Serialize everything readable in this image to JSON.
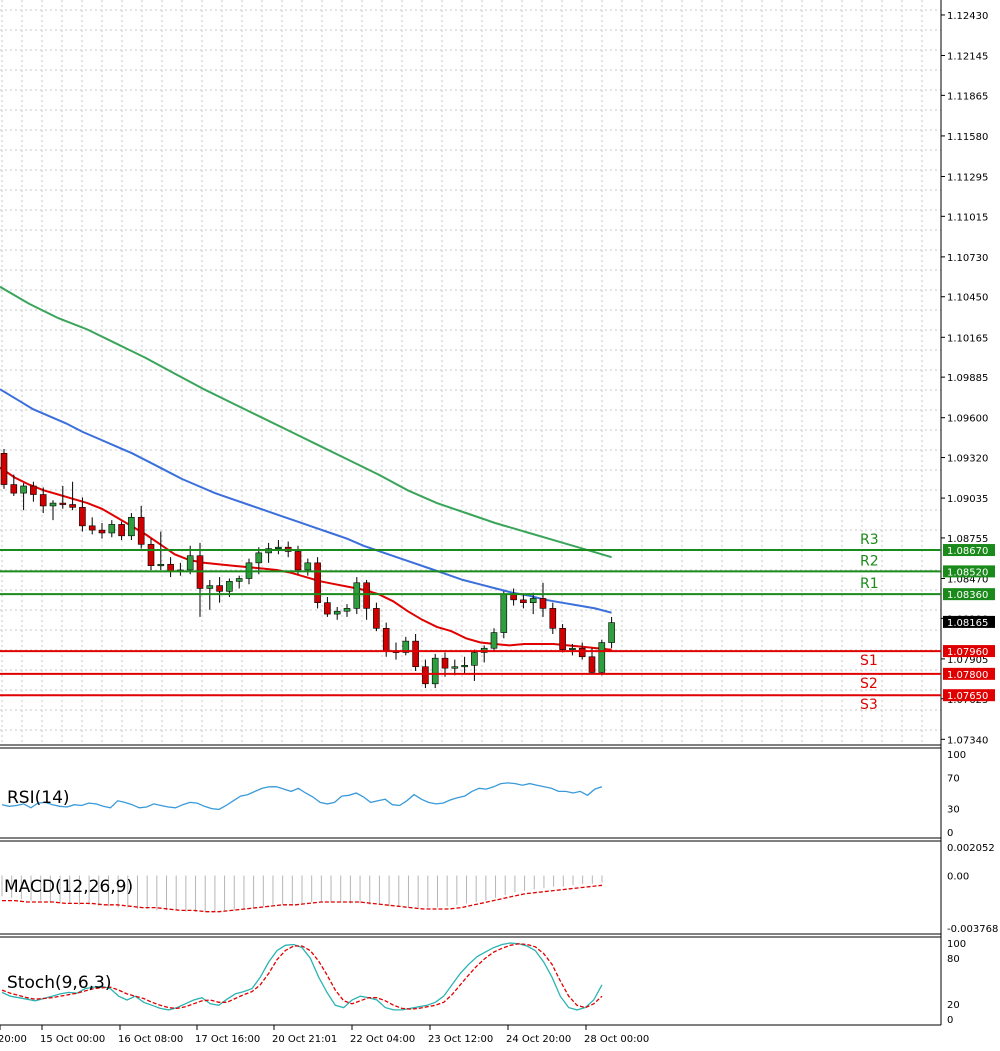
{
  "chart_data": {
    "type": "candlestick",
    "colors": {
      "bull": "#2e9e3e",
      "bear": "#d10000",
      "ma_fast": "#e00000",
      "ma_mid": "#3b6fdc",
      "ma_slow": "#3aa55a",
      "support": "#e00000",
      "resistance": "#1a8a1a",
      "grid": "#c9c9c9",
      "current_tag": "#000000"
    },
    "price_axis": {
      "ticks": [
        "1.12430",
        "1.12145",
        "1.11865",
        "1.11580",
        "1.11295",
        "1.11015",
        "1.10730",
        "1.10450",
        "1.10165",
        "1.09885",
        "1.09600",
        "1.09320",
        "1.09035",
        "1.08755",
        "1.08470",
        "1.08190",
        "1.07905",
        "1.07625",
        "1.07340"
      ],
      "ylim": [
        1.073,
        1.125
      ]
    },
    "time_axis": [
      "20:00",
      "15 Oct 00:00",
      "16 Oct 08:00",
      "17 Oct 16:00",
      "20 Oct 21:01",
      "22 Oct 04:00",
      "23 Oct 12:00",
      "24 Oct 20:00",
      "28 Oct 00:00"
    ],
    "current_price": {
      "value": 1.08165,
      "label": "1.08165"
    },
    "levels": [
      {
        "name": "R3",
        "value": 1.0867,
        "label": "1.08670",
        "kind": "resistance"
      },
      {
        "name": "R2",
        "value": 1.0852,
        "label": "1.08520",
        "kind": "resistance"
      },
      {
        "name": "R1",
        "value": 1.0836,
        "label": "1.08360",
        "kind": "resistance"
      },
      {
        "name": "S1",
        "value": 1.0796,
        "label": "1.07960",
        "kind": "support"
      },
      {
        "name": "S2",
        "value": 1.078,
        "label": "1.07800",
        "kind": "support"
      },
      {
        "name": "S3",
        "value": 1.0765,
        "label": "1.07650",
        "kind": "support"
      }
    ],
    "candles": [
      [
        1.0935,
        1.0938,
        1.091,
        1.0913
      ],
      [
        1.0913,
        1.092,
        1.0905,
        1.0907
      ],
      [
        1.0907,
        1.0914,
        1.0895,
        1.0912
      ],
      [
        1.0912,
        1.0915,
        1.0901,
        1.0906
      ],
      [
        1.0906,
        1.0911,
        1.0893,
        1.0898
      ],
      [
        1.0898,
        1.0902,
        1.0888,
        1.09
      ],
      [
        1.09,
        1.0912,
        1.0896,
        1.0899
      ],
      [
        1.0899,
        1.0915,
        1.0895,
        1.0897
      ],
      [
        1.0897,
        1.0904,
        1.088,
        1.0884
      ],
      [
        1.0884,
        1.089,
        1.0878,
        1.0881
      ],
      [
        1.0881,
        1.0886,
        1.0875,
        1.0879
      ],
      [
        1.0879,
        1.0888,
        1.0876,
        1.0885
      ],
      [
        1.0885,
        1.0887,
        1.0874,
        1.0877
      ],
      [
        1.0877,
        1.0893,
        1.0874,
        1.089
      ],
      [
        1.089,
        1.0898,
        1.0868,
        1.0871
      ],
      [
        1.0871,
        1.0875,
        1.0853,
        1.0856
      ],
      [
        1.0856,
        1.088,
        1.0853,
        1.0857
      ],
      [
        1.0857,
        1.0862,
        1.0848,
        1.0852
      ],
      [
        1.0852,
        1.0858,
        1.0849,
        1.0853
      ],
      [
        1.0853,
        1.087,
        1.085,
        1.0863
      ],
      [
        1.0863,
        1.0872,
        1.082,
        1.084
      ],
      [
        1.084,
        1.0846,
        1.0825,
        1.0842
      ],
      [
        1.0842,
        1.0848,
        1.083,
        1.0838
      ],
      [
        1.0838,
        1.0847,
        1.0834,
        1.0845
      ],
      [
        1.0845,
        1.0849,
        1.084,
        1.0847
      ],
      [
        1.0847,
        1.0861,
        1.0843,
        1.0858
      ],
      [
        1.0858,
        1.0869,
        1.085,
        1.0865
      ],
      [
        1.0865,
        1.0872,
        1.0858,
        1.0868
      ],
      [
        1.0868,
        1.0874,
        1.0864,
        1.0869
      ],
      [
        1.0869,
        1.0873,
        1.0862,
        1.0866
      ],
      [
        1.0866,
        1.087,
        1.085,
        1.0853
      ],
      [
        1.0853,
        1.0861,
        1.0849,
        1.0858
      ],
      [
        1.0858,
        1.0862,
        1.0826,
        1.083
      ],
      [
        1.083,
        1.0834,
        1.082,
        1.0822
      ],
      [
        1.0822,
        1.0827,
        1.0818,
        1.0824
      ],
      [
        1.0824,
        1.0829,
        1.082,
        1.0826
      ],
      [
        1.0826,
        1.0848,
        1.0822,
        1.0844
      ],
      [
        1.0844,
        1.0846,
        1.0818,
        1.0826
      ],
      [
        1.0826,
        1.083,
        1.081,
        1.0812
      ],
      [
        1.0812,
        1.0816,
        1.0792,
        1.0796
      ],
      [
        1.0796,
        1.0802,
        1.079,
        1.0795
      ],
      [
        1.0795,
        1.0806,
        1.0793,
        1.0803
      ],
      [
        1.0803,
        1.0808,
        1.0782,
        1.0785
      ],
      [
        1.0785,
        1.079,
        1.077,
        1.0773
      ],
      [
        1.0773,
        1.0794,
        1.077,
        1.0791
      ],
      [
        1.0791,
        1.0795,
        1.0778,
        1.0784
      ],
      [
        1.0784,
        1.079,
        1.0779,
        1.0785
      ],
      [
        1.0785,
        1.0792,
        1.078,
        1.0786
      ],
      [
        1.0786,
        1.0797,
        1.0775,
        1.0795
      ],
      [
        1.0795,
        1.08,
        1.0788,
        1.0798
      ],
      [
        1.0798,
        1.0812,
        1.0796,
        1.0809
      ],
      [
        1.0809,
        1.0838,
        1.0805,
        1.0836
      ],
      [
        1.0836,
        1.084,
        1.0828,
        1.0832
      ],
      [
        1.0832,
        1.0836,
        1.0826,
        1.083
      ],
      [
        1.083,
        1.0837,
        1.0822,
        1.0833
      ],
      [
        1.0833,
        1.0844,
        1.082,
        1.0826
      ],
      [
        1.0826,
        1.083,
        1.0808,
        1.0812
      ],
      [
        1.0812,
        1.0815,
        1.0795,
        1.0797
      ],
      [
        1.0797,
        1.0801,
        1.0793,
        1.0798
      ],
      [
        1.0798,
        1.0802,
        1.079,
        1.0792
      ],
      [
        1.0792,
        1.0798,
        1.078,
        1.0781
      ],
      [
        1.0781,
        1.0804,
        1.0779,
        1.0802
      ],
      [
        1.0802,
        1.082,
        1.0798,
        1.0816
      ]
    ],
    "ma_fast": [
      1.0925,
      1.0918,
      1.0913,
      1.0909,
      1.0906,
      1.0903,
      1.09,
      1.0896,
      1.089,
      1.0884,
      1.0878,
      1.0871,
      1.0864,
      1.086,
      1.0858,
      1.0857,
      1.0856,
      1.0855,
      1.0854,
      1.0853,
      1.0851,
      1.0848,
      1.0845,
      1.0843,
      1.0841,
      1.0839,
      1.0836,
      1.0831,
      1.0824,
      1.0818,
      1.0813,
      1.081,
      1.0805,
      1.0802,
      1.0801,
      1.08,
      1.0801,
      1.0801,
      1.0801,
      1.08,
      1.0799,
      1.0798,
      1.0797
    ],
    "ma_mid": [
      1.098,
      1.0973,
      1.0966,
      1.0961,
      1.0956,
      1.095,
      1.0945,
      1.094,
      1.0935,
      1.0929,
      1.0923,
      1.0917,
      1.0912,
      1.0907,
      1.0903,
      1.0899,
      1.0895,
      1.0891,
      1.0887,
      1.0883,
      1.0879,
      1.0875,
      1.087,
      1.0866,
      1.0862,
      1.0858,
      1.0854,
      1.085,
      1.0846,
      1.0843,
      1.084,
      1.0837,
      1.0835,
      1.0832,
      1.083,
      1.0828,
      1.0826,
      1.0823
    ],
    "ma_slow": [
      1.1052,
      1.104,
      1.103,
      1.1022,
      1.1012,
      1.1002,
      1.0991,
      1.098,
      1.097,
      1.096,
      1.095,
      1.094,
      1.093,
      1.092,
      1.0909,
      1.09,
      1.0893,
      1.0886,
      1.088,
      1.0874,
      1.0868,
      1.0862
    ],
    "rsi": {
      "label": "RSI(14)",
      "ticks": [
        "100",
        "70",
        "30",
        "0"
      ],
      "ylim": [
        0,
        100
      ],
      "values": [
        35,
        33,
        34,
        36,
        31,
        37,
        38,
        35,
        33,
        32,
        35,
        34,
        37,
        36,
        33,
        31,
        40,
        38,
        35,
        31,
        32,
        36,
        34,
        32,
        31,
        35,
        38,
        37,
        33,
        30,
        29,
        34,
        40,
        46,
        48,
        52,
        56,
        58,
        58,
        55,
        52,
        56,
        50,
        45,
        38,
        36,
        38,
        46,
        47,
        50,
        45,
        38,
        40,
        42,
        35,
        34,
        40,
        48,
        42,
        38,
        36,
        37,
        41,
        44,
        46,
        52,
        56,
        55,
        58,
        62,
        63,
        62,
        60,
        62,
        60,
        58,
        56,
        52,
        52,
        50,
        52,
        47,
        55,
        58
      ]
    },
    "macd": {
      "label": "MACD(12,26,9)",
      "ticks": [
        "0.002052",
        "0.00",
        "-0.003768"
      ],
      "ylim": [
        -0.003768,
        0.002052
      ],
      "histogram": [
        -0.0015,
        -0.0016,
        -0.0017,
        -0.0018,
        -0.0018,
        -0.0019,
        -0.002,
        -0.002,
        -0.0021,
        -0.0021,
        -0.0022,
        -0.0022,
        -0.0023,
        -0.0023,
        -0.0024,
        -0.0024,
        -0.0025,
        -0.0025,
        -0.0025,
        -0.0026,
        -0.0026,
        -0.0026,
        -0.0026,
        -0.0025,
        -0.0025,
        -0.0024,
        -0.0023,
        -0.0022,
        -0.0021,
        -0.0021,
        -0.002,
        -0.002,
        -0.0019,
        -0.0019,
        -0.0019,
        -0.0019,
        -0.002,
        -0.002,
        -0.0021,
        -0.0021,
        -0.0022,
        -0.0022,
        -0.0023,
        -0.0023,
        -0.0023,
        -0.0023,
        -0.0022,
        -0.0021,
        -0.002,
        -0.0019,
        -0.0018,
        -0.0016,
        -0.0014,
        -0.0012,
        -0.0011,
        -0.001,
        -0.0009,
        -0.0008,
        -0.0008,
        -0.0007,
        -0.0006,
        -0.0006,
        -0.0005
      ],
      "signal": [
        -0.0018,
        -0.0018,
        -0.0019,
        -0.0019,
        -0.0019,
        -0.002,
        -0.002,
        -0.002,
        -0.0021,
        -0.0021,
        -0.0022,
        -0.0023,
        -0.0023,
        -0.0024,
        -0.0025,
        -0.0025,
        -0.0026,
        -0.0026,
        -0.0025,
        -0.0024,
        -0.0023,
        -0.0022,
        -0.0021,
        -0.0021,
        -0.002,
        -0.0019,
        -0.0019,
        -0.0019,
        -0.0019,
        -0.002,
        -0.0021,
        -0.0022,
        -0.0023,
        -0.0024,
        -0.0024,
        -0.0024,
        -0.0023,
        -0.0021,
        -0.0019,
        -0.0017,
        -0.0015,
        -0.0013,
        -0.0012,
        -0.0011,
        -0.001,
        -0.0009,
        -0.0008,
        -0.0007
      ]
    },
    "stoch": {
      "label": "Stoch(9,6,3)",
      "ticks": [
        "100",
        "80",
        "20",
        "0"
      ],
      "ylim": [
        0,
        100
      ],
      "main": [
        35,
        30,
        28,
        26,
        24,
        27,
        30,
        33,
        35,
        34,
        40,
        42,
        43,
        40,
        30,
        25,
        30,
        22,
        18,
        14,
        12,
        15,
        20,
        25,
        28,
        20,
        18,
        26,
        33,
        36,
        40,
        55,
        75,
        90,
        97,
        98,
        94,
        80,
        55,
        35,
        18,
        15,
        25,
        30,
        28,
        25,
        15,
        12,
        12,
        14,
        16,
        18,
        22,
        30,
        45,
        60,
        72,
        82,
        88,
        94,
        98,
        100,
        99,
        96,
        90,
        75,
        55,
        30,
        15,
        12,
        15,
        25,
        45
      ],
      "signal": [
        38,
        34,
        31,
        28,
        26,
        27,
        28,
        30,
        32,
        34,
        37,
        40,
        41,
        42,
        38,
        33,
        30,
        27,
        22,
        18,
        15,
        14,
        16,
        20,
        24,
        25,
        22,
        22,
        27,
        32,
        36,
        45,
        60,
        78,
        90,
        96,
        96,
        90,
        76,
        58,
        38,
        24,
        20,
        24,
        28,
        28,
        24,
        18,
        14,
        13,
        14,
        16,
        18,
        22,
        32,
        45,
        58,
        70,
        80,
        88,
        93,
        97,
        99,
        98,
        95,
        86,
        72,
        50,
        30,
        18,
        15,
        20,
        30
      ]
    }
  }
}
